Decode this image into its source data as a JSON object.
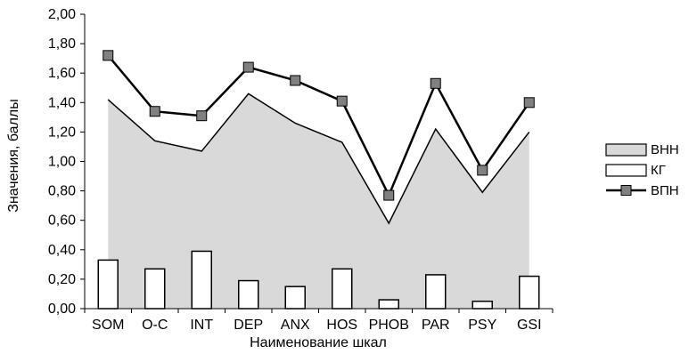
{
  "chart_data": {
    "type": "combo",
    "categories": [
      "SOM",
      "O-C",
      "INT",
      "DEP",
      "ANX",
      "HOS",
      "PHOB",
      "PAR",
      "PSY",
      "GSI"
    ],
    "series": [
      {
        "name": "ВНН",
        "type": "area",
        "color": "#d9d9d9",
        "values": [
          1.42,
          1.14,
          1.07,
          1.46,
          1.26,
          1.13,
          0.58,
          1.22,
          0.79,
          1.2
        ]
      },
      {
        "name": "КГ",
        "type": "bar",
        "color": "#ffffff",
        "values": [
          0.33,
          0.27,
          0.39,
          0.19,
          0.15,
          0.27,
          0.06,
          0.23,
          0.05,
          0.22
        ]
      },
      {
        "name": "ВПН",
        "type": "line",
        "color": "#000000",
        "marker_color": "#808080",
        "values": [
          1.72,
          1.34,
          1.31,
          1.64,
          1.55,
          1.41,
          0.77,
          1.53,
          0.94,
          1.4
        ]
      }
    ],
    "xlabel": "Наименование шкал",
    "ylabel": "Значения, баллы",
    "ylim": [
      0,
      2.0
    ],
    "yticks": [
      "0,00",
      "0,20",
      "0,40",
      "0,60",
      "0,80",
      "1,00",
      "1,20",
      "1,40",
      "1,60",
      "1,80",
      "2,00"
    ],
    "legend": "right",
    "grid": false
  }
}
